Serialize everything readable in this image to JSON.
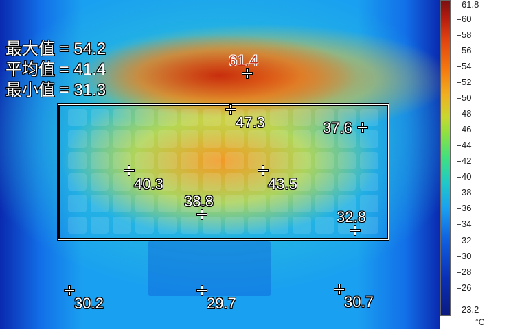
{
  "stats": [
    {
      "label": "最大值 = 54.2"
    },
    {
      "label": "平均值 = 41.4"
    },
    {
      "label": "最小值 = 31.3"
    }
  ],
  "spots": [
    {
      "value": "61.4",
      "hot": true
    },
    {
      "value": "47.3"
    },
    {
      "value": "37.6"
    },
    {
      "value": "40.3"
    },
    {
      "value": "43.5"
    },
    {
      "value": "38.8"
    },
    {
      "value": "32.8"
    },
    {
      "value": "30.2"
    },
    {
      "value": "29.7"
    },
    {
      "value": "30.7"
    }
  ],
  "colorbar": {
    "min": 23.2,
    "max": 61.8,
    "unit": "°C",
    "ticks": [
      "61.8",
      "60",
      "58",
      "56",
      "54",
      "52",
      "50",
      "48",
      "46",
      "44",
      "42",
      "40",
      "38",
      "36",
      "34",
      "32",
      "30",
      "28",
      "26",
      "23.2"
    ],
    "palette": "rainbow"
  }
}
